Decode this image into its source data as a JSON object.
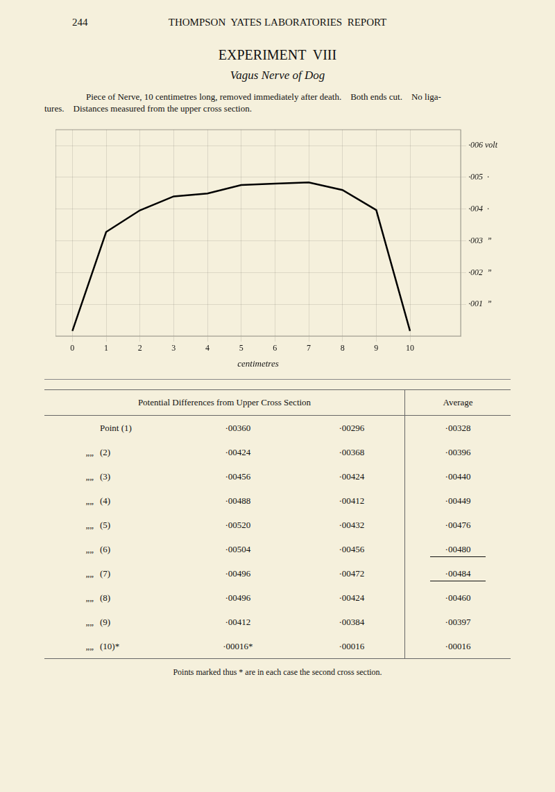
{
  "chart_data": {
    "type": "line",
    "title": "EXPERIMENT  VIII",
    "subtitle": "Vagus Nerve of Dog",
    "x": [
      0,
      1,
      2,
      3,
      4,
      5,
      6,
      7,
      8,
      9,
      10
    ],
    "values": [
      0.00016,
      0.00328,
      0.00396,
      0.0044,
      0.00449,
      0.00476,
      0.0048,
      0.00484,
      0.0046,
      0.00397,
      0.00016
    ],
    "color": "black",
    "xlabel": "centimetres",
    "xlim": [
      -0.5,
      11.5
    ],
    "xticks": [
      0,
      1,
      2,
      3,
      4,
      5,
      6,
      7,
      8,
      9,
      10
    ],
    "ylim": [
      0,
      0.0065
    ],
    "yticks": [
      {
        "value": 0.001,
        "label": "·001  ”"
      },
      {
        "value": 0.002,
        "label": "·002  ”"
      },
      {
        "value": 0.003,
        "label": "·003  ”"
      },
      {
        "value": 0.004,
        "label": "·004  ·"
      },
      {
        "value": 0.005,
        "label": "·005  ·"
      },
      {
        "value": 0.006,
        "label": "·006 volt"
      }
    ],
    "grid": true
  },
  "page_number": "244",
  "header": "THOMPSON  YATES LABORATORIES  REPORT",
  "description": [
    "Piece of Nerve, 10 centimetres long, removed immediately after death.    Both ends cut.    No liga-",
    "tures.    Distances measured from the upper cross section."
  ],
  "background_color": "#f5f0dc",
  "table": {
    "col_header_left": "Potential Differences from Upper Cross Section",
    "col_header_right": "Average",
    "rows": [
      {
        "prefix": "",
        "label": "Point (1)",
        "col1": "·00360",
        "col2": "·00296",
        "avg": "·00328",
        "underline_avg": false
      },
      {
        "prefix": "„„",
        "label": "(2)",
        "col1": "·00424",
        "col2": "·00368",
        "avg": "·00396",
        "underline_avg": false
      },
      {
        "prefix": "„„",
        "label": "(3)",
        "col1": "·00456",
        "col2": "·00424",
        "avg": "·00440",
        "underline_avg": false
      },
      {
        "prefix": "„„",
        "label": "(4)",
        "col1": "·00488",
        "col2": "·00412",
        "avg": "·00449",
        "underline_avg": false
      },
      {
        "prefix": "„„",
        "label": "(5)",
        "col1": "·00520",
        "col2": "·00432",
        "avg": "·00476",
        "underline_avg": false
      },
      {
        "prefix": "„„",
        "label": "(6)",
        "col1": "·00504",
        "col2": "·00456",
        "avg": "·00480",
        "underline_avg": true
      },
      {
        "prefix": "„„",
        "label": "(7)",
        "col1": "·00496",
        "col2": "·00472",
        "avg": "·00484",
        "underline_avg": true
      },
      {
        "prefix": "„„",
        "label": "(8)",
        "col1": "·00496",
        "col2": "·00424",
        "avg": "·00460",
        "underline_avg": false
      },
      {
        "prefix": "„„",
        "label": "(9)",
        "col1": "·00412",
        "col2": "·00384",
        "avg": "·00397",
        "underline_avg": false
      },
      {
        "prefix": "„„",
        "label": "(10)*",
        "col1": "·00016*",
        "col2": "·00016",
        "avg": "·00016",
        "underline_avg": false
      }
    ]
  },
  "footnote": "Points marked thus * are in each case the second cross section."
}
